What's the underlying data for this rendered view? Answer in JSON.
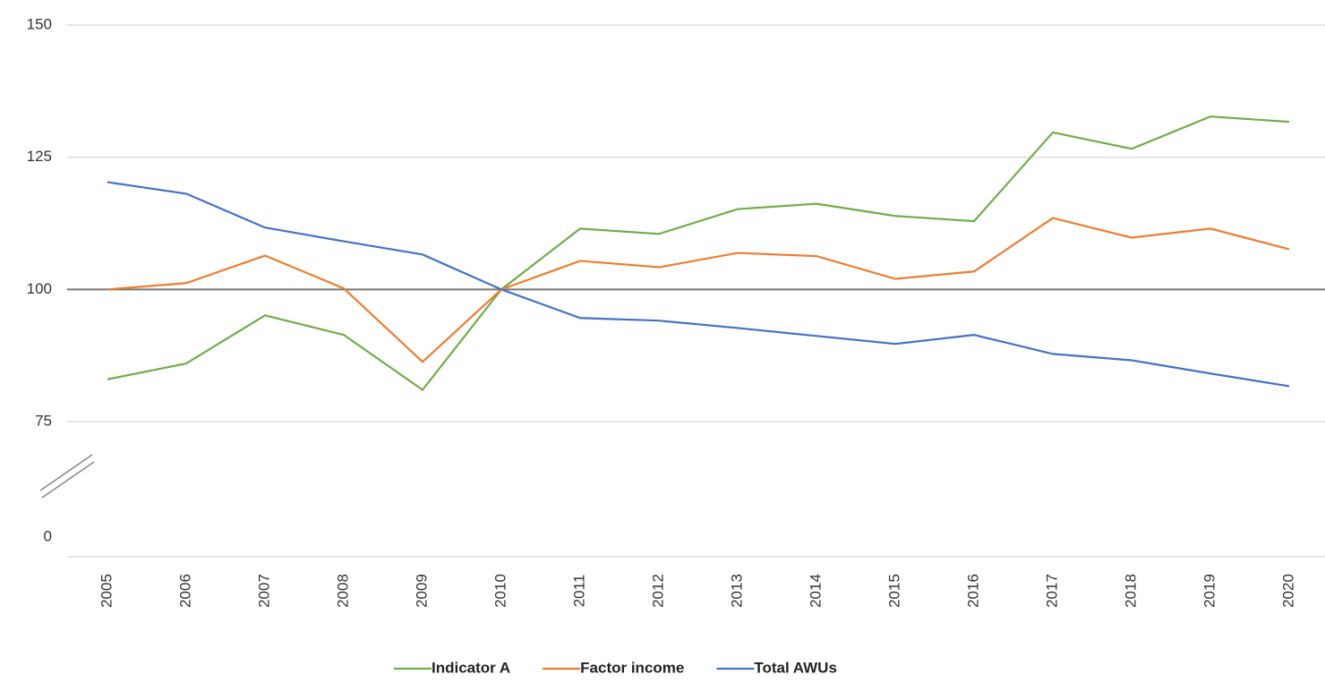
{
  "chart_data": {
    "type": "line",
    "x": [
      "2005",
      "2006",
      "2007",
      "2008",
      "2009",
      "2010",
      "2011",
      "2012",
      "2013",
      "2014",
      "2015",
      "2016",
      "2017",
      "2018",
      "2019",
      "2020"
    ],
    "series": [
      {
        "name": "Indicator A",
        "color": "#70ad47",
        "values": [
          83,
          86,
          95.1,
          91.4,
          81,
          100,
          111.5,
          110.5,
          115.2,
          116.2,
          113.9,
          112.9,
          129.7,
          126.6,
          132.7,
          131.7
        ]
      },
      {
        "name": "Factor income",
        "color": "#ed7d31",
        "values": [
          100,
          101.2,
          106.4,
          100.2,
          86.3,
          100,
          105.4,
          104.2,
          106.9,
          106.3,
          102,
          103.4,
          113.5,
          109.8,
          111.5,
          107.6
        ]
      },
      {
        "name": "Total AWUs",
        "color": "#4472c4",
        "values": [
          120.3,
          118.1,
          111.7,
          109.1,
          106.6,
          100,
          94.6,
          94.1,
          92.7,
          91.2,
          89.7,
          91.4,
          87.8,
          86.6,
          84.1,
          81.7
        ]
      }
    ],
    "ylim": [
      0,
      150
    ],
    "yticks": [
      0,
      75,
      100,
      125,
      150
    ],
    "axis_break": [
      0,
      75
    ],
    "reference_line": 100,
    "grid": true,
    "legend": "bottom"
  }
}
